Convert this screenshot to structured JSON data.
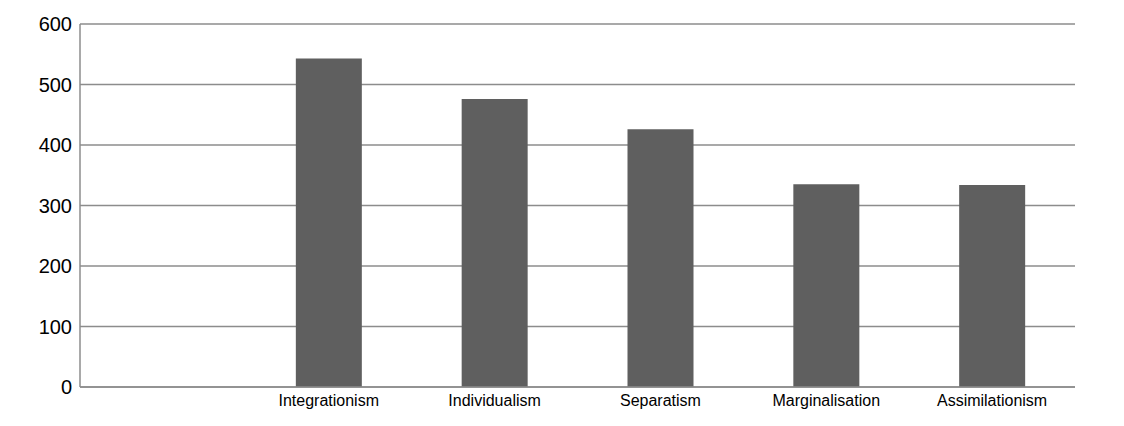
{
  "chart_data": {
    "type": "bar",
    "categories": [
      null,
      "Integrationism",
      "Individualism",
      "Separatism",
      "Marginalisation",
      "Assimilationism"
    ],
    "values": [
      null,
      543,
      476,
      426,
      335,
      334
    ],
    "color": "#5f5f5f",
    "ylim": [
      0,
      600
    ],
    "yticks": [
      0,
      100,
      200,
      300,
      400,
      500,
      600
    ],
    "grid": true
  }
}
